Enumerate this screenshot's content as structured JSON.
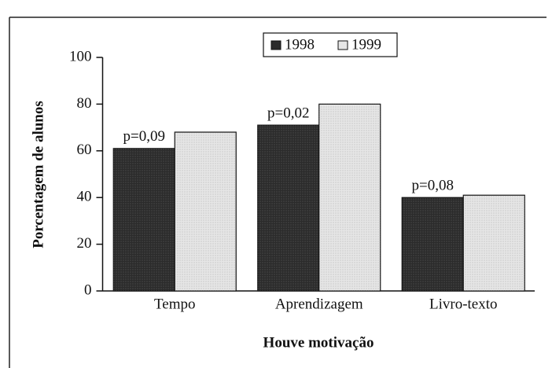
{
  "chart_data": {
    "type": "bar",
    "xlabel": "Houve motivação",
    "ylabel": "Porcentagem de alunos",
    "categories": [
      "Tempo",
      "Aprendizagem",
      "Livro-texto"
    ],
    "series": [
      {
        "name": "1998",
        "color": "#2b2b2b",
        "values": [
          61,
          71,
          40
        ]
      },
      {
        "name": "1999",
        "color": "#e6e6e6",
        "values": [
          68,
          80,
          41
        ]
      }
    ],
    "annotations": [
      "p=0,09",
      "p=0,02",
      "p=0,08"
    ],
    "ylim": [
      0,
      100
    ],
    "yticks": [
      0,
      20,
      40,
      60,
      80,
      100
    ],
    "legend": "top"
  }
}
